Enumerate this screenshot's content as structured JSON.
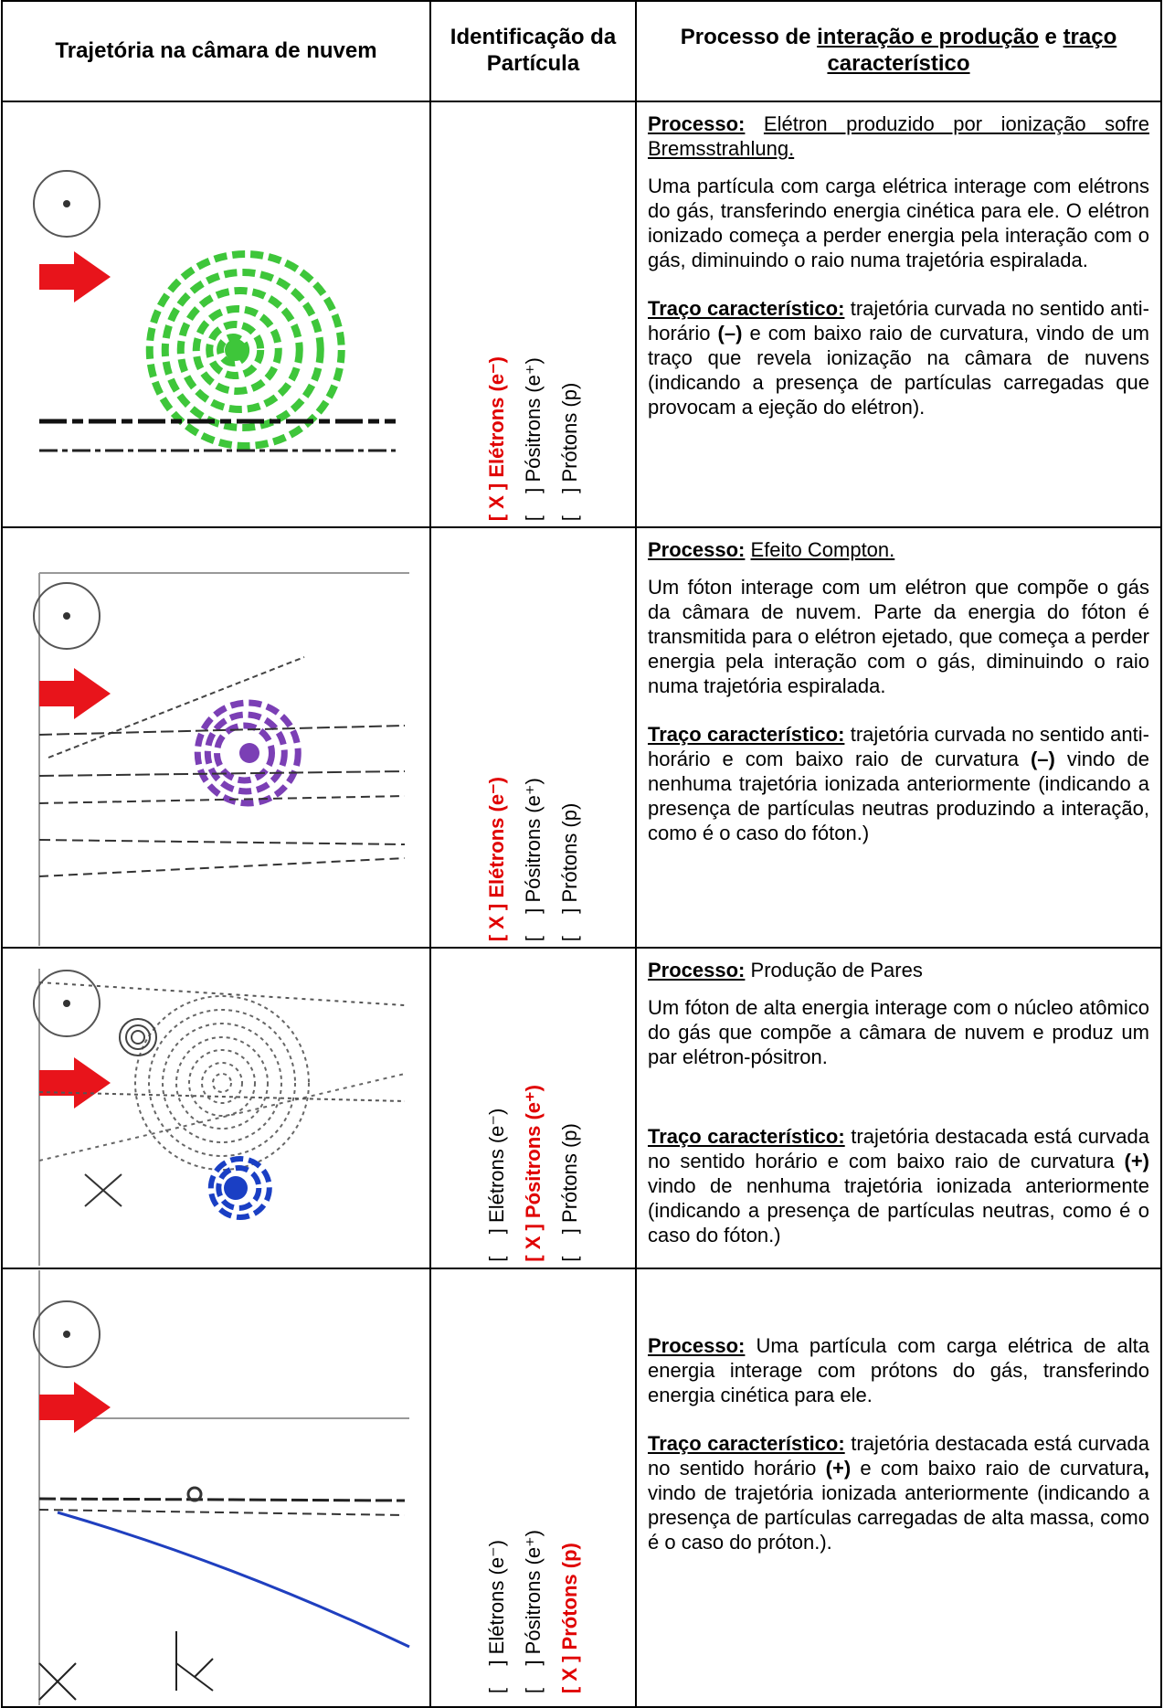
{
  "header": {
    "col1": "Trajetória na câmara de nuvem",
    "col2": "Identificação da Partícula",
    "col3": [
      "Processo de ",
      "interação e produção",
      " e ",
      "traço característico"
    ]
  },
  "rows": [
    {
      "options": [
        "[ X ] Elétrons (e⁻)",
        "[    ] Pósitrons (e⁺)",
        "[    ] Prótons (p)"
      ],
      "process_label": "Processo:",
      "process": "Elétron produzido por ionização sofre Bremsstrahlung.",
      "description": "Uma partícula com carga elétrica interage com elétrons do gás, transferindo energia cinética para ele. O elétron ionizado começa a perder energia pela interação com o gás, diminuindo o raio numa trajetória espiralada.",
      "trace_label": "Traço característico:",
      "trace": [
        "trajetória curvada no sentido anti-horário ",
        "(–)",
        " e com baixo raio de curvatura, vindo de um traço que revela ionização na câmara de nuvens (indicando a presença de partículas carregadas que provocam a ejeção do elétron)."
      ]
    },
    {
      "options": [
        "[ X ] Elétrons (e⁻)",
        "[    ] Pósitrons (e⁺)",
        "[    ] Prótons (p)"
      ],
      "process_label": "Processo:",
      "process": "Efeito Compton.",
      "description": "Um fóton interage com um elétron que compõe o gás da câmara de nuvem. Parte da energia do fóton é transmitida para o elétron ejetado, que começa a perder energia pela interação com o gás, diminuindo o raio numa trajetória espiralada.",
      "trace_label": "Traço característico:",
      "trace": [
        "trajetória curvada no sentido anti-horário e com baixo raio de curvatura ",
        "(–)",
        " vindo de nenhuma trajetória ionizada anteriormente (indicando a presença de partículas neutras produzindo a interação, como é o caso do fóton.)"
      ]
    },
    {
      "options": [
        "[    ] Elétrons (e⁻)",
        "[ X ] Pósitrons (e⁺)",
        "[    ] Prótons (p)"
      ],
      "process_label": "Processo:",
      "process": "Produção de Pares",
      "description": "Um fóton de alta energia interage com o núcleo atômico do gás que compõe a câmara de nuvem e produz um par elétron-pósitron.",
      "trace_label": "Traço característico:",
      "trace": [
        "trajetória destacada está curvada no sentido horário e com baixo raio de curvatura ",
        "(+)",
        " vindo de nenhuma trajetória ionizada anteriormente (indicando a presença de partículas neutras, como é o caso do fóton.)"
      ]
    },
    {
      "options": [
        "[    ] Elétrons (e⁻)",
        "[    ] Pósitrons (e⁺)",
        "[ X ] Prótons (p)"
      ],
      "process_label": "Processo:",
      "process": "Uma partícula com carga elétrica de alta energia interage com prótons do gás, transferindo energia cinética para ele.",
      "trace_label": "Traço característico:",
      "trace": [
        "trajetória destacada está curvada no sentido horário ",
        "(+)",
        " e com baixo raio de curvatura",
        ",",
        " vindo de trajetória ionizada anteriormente (indicando a presença de partículas carregadas de alta massa, como é o caso do próton.)."
      ]
    }
  ]
}
